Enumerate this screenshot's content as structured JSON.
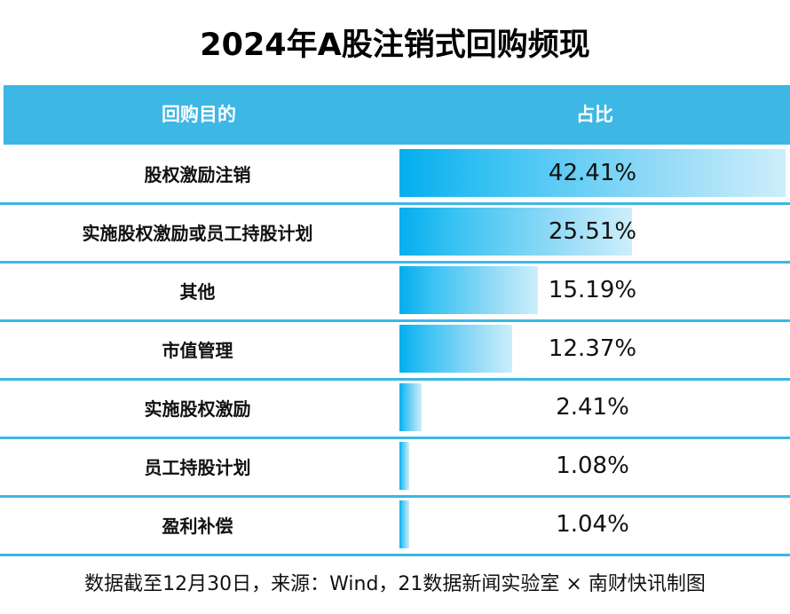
{
  "title": "2024年A股注销式回购频现",
  "chart_data": {
    "type": "bar",
    "title": "2024年A股注销式回购频现",
    "columns": [
      "回购目的",
      "占比"
    ],
    "categories": [
      "股权激励注销",
      "实施股权激励或员工持股计划",
      "其他",
      "市值管理",
      "实施股权激励",
      "员工持股计划",
      "盈利补偿"
    ],
    "values": [
      42.41,
      25.51,
      15.19,
      12.37,
      2.41,
      1.08,
      1.04
    ],
    "labels": [
      "42.41%",
      "25.51%",
      "15.19%",
      "12.37%",
      "2.41%",
      "1.08%",
      "1.04%"
    ],
    "unit": "%",
    "orientation": "horizontal",
    "colors": {
      "header": "#3db7e4",
      "bar_start": "#04aeee",
      "bar_end": "#cdeefb"
    }
  },
  "footer": "数据截至12月30日，来源：Wind，21数据新闻实验室 × 南财快讯制图"
}
